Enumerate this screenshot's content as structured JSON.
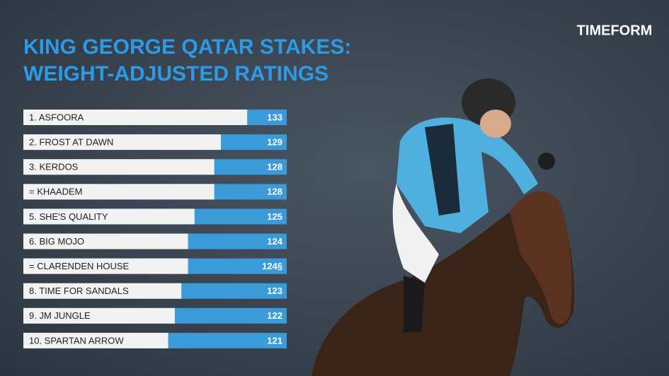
{
  "logo": "TIMEFORM",
  "chart_data": {
    "type": "bar",
    "orientation": "horizontal",
    "title": [
      "KING GEORGE QATAR STAKES:",
      "WEIGHT-ADJUSTED RATINGS"
    ],
    "categories": [
      "1.   ASFOORA",
      "2.  FROST AT DAWN",
      "3. KERDOS",
      "= KHAADEM",
      "5. SHE'S QUALITY",
      "6. BIG MOJO",
      "= CLARENDEN HOUSE",
      "8. TIME FOR SANDALS",
      "9. JM JUNGLE",
      "10. SPARTAN ARROW"
    ],
    "values": [
      133,
      129,
      128,
      128,
      125,
      124,
      124,
      123,
      122,
      121
    ],
    "value_labels": [
      "133",
      "129",
      "128",
      "128",
      "125",
      "124",
      "124§",
      "123",
      "122",
      "121"
    ],
    "xlim": [
      99,
      139
    ],
    "color": "#f2f2f2",
    "track_color": "#3b9ad8"
  }
}
